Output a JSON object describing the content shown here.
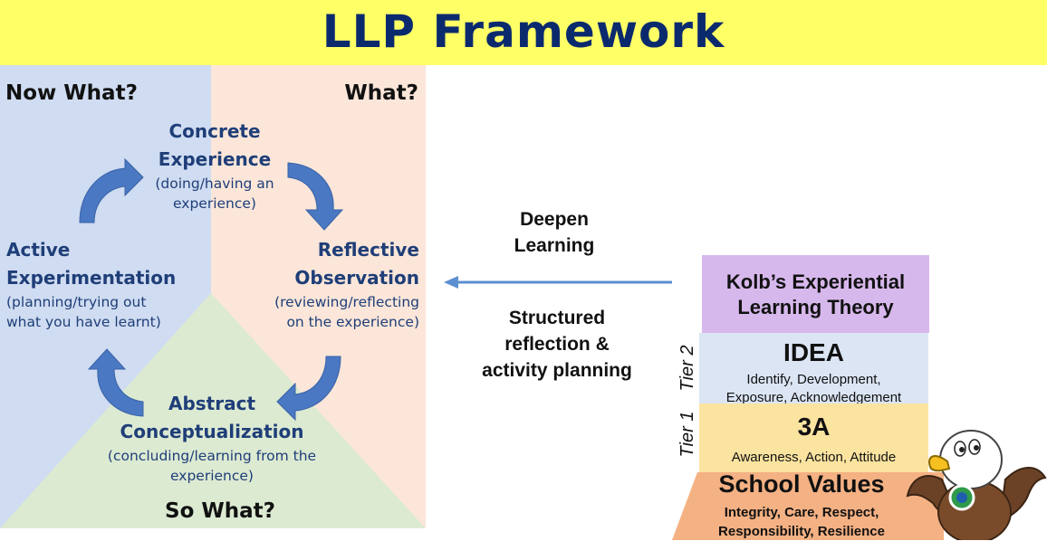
{
  "banner": {
    "title": "LLP Framework"
  },
  "cycle": {
    "corners": {
      "top_left": "Now What?",
      "top_right": "What?",
      "bottom": "So What?"
    },
    "stages": {
      "concrete": {
        "title_line1": "Concrete",
        "title_line2": "Experience",
        "desc_line1": "(doing/having an",
        "desc_line2": "experience)"
      },
      "reflective": {
        "title_line1": "Reflective",
        "title_line2": "Observation",
        "desc_line1": "(reviewing/reflecting",
        "desc_line2": "on the experience)"
      },
      "abstract": {
        "title_line1": "Abstract",
        "title_line2": "Conceptualization",
        "desc_line1": "(concluding/learning from the",
        "desc_line2": "experience)"
      },
      "active": {
        "title_line1": "Active",
        "title_line2": "Experimentation",
        "desc_line1": "(planning/trying out",
        "desc_line2": "what you have learnt)"
      }
    },
    "colors": {
      "blue": "#cfdcf1",
      "peach": "#fbe6d9",
      "green": "#dcead2",
      "arrow": "#4a78c2"
    }
  },
  "middle": {
    "deepen_line1": "Deepen",
    "deepen_line2": "Learning",
    "structured_line1": "Structured",
    "structured_line2": "reflection &",
    "structured_line3": "activity planning"
  },
  "pyramid": {
    "kolb": {
      "line1": "Kolb’s Experiential",
      "line2": "Learning Theory"
    },
    "idea": {
      "title": "IDEA",
      "desc_line1": "Identify, Development,",
      "desc_line2": "Exposure, Acknowledgement"
    },
    "aaa": {
      "title": "3A",
      "desc": "Awareness, Action, Attitude"
    },
    "values": {
      "title": "School Values",
      "desc_line1": "Integrity, Care, Respect,",
      "desc_line2": "Responsibility, Resilience"
    },
    "tier_labels": {
      "tier2": "Tier 2",
      "tier1": "Tier 1"
    }
  },
  "mascot": {
    "icon": "eagle-mascot-icon"
  }
}
